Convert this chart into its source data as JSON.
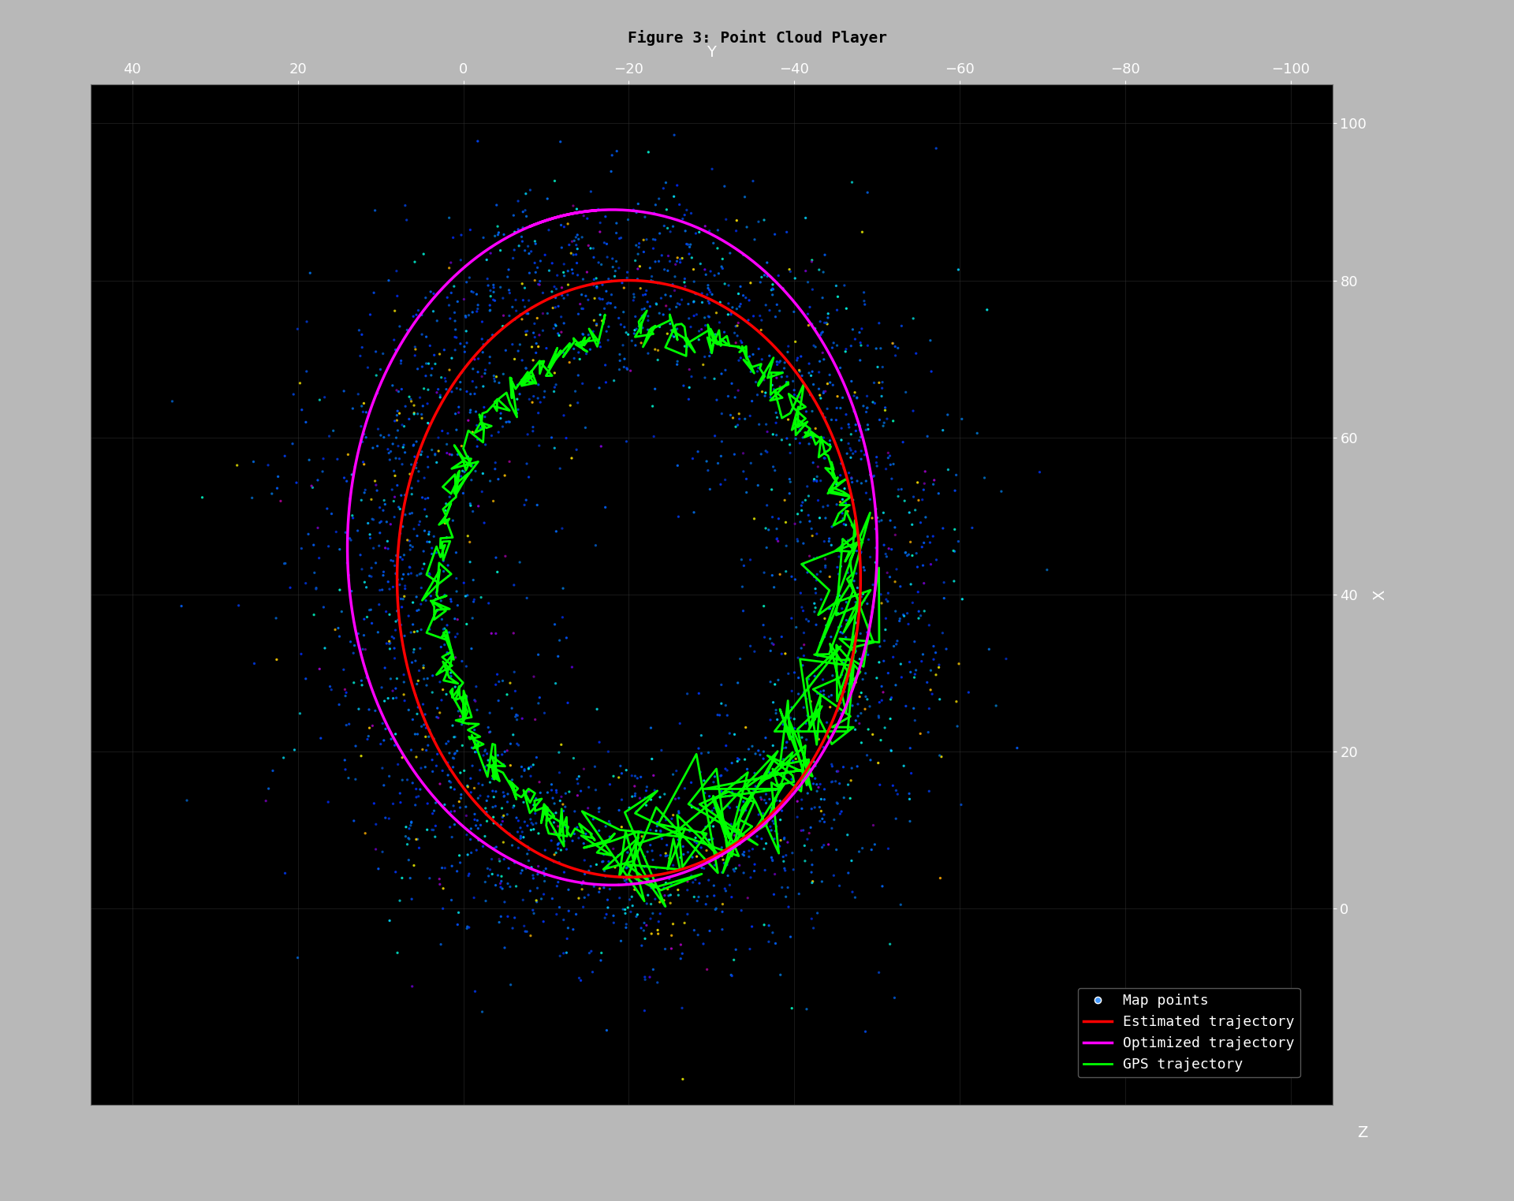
{
  "title": "Figure 3: Point Cloud Player",
  "window_bg": "#c0c0c0",
  "plot_bg": "#000000",
  "grid_color": "#404040",
  "axis_label_color": "#ffffff",
  "tick_color": "#ffffff",
  "xlabel": "Z",
  "ylabel": "X",
  "zlabel": "Y",
  "x_axis_label": "X",
  "y_axis_label": "Y",
  "z_axis_label": "Z",
  "ylim": [
    -25,
    105
  ],
  "xlim": [
    50,
    -105
  ],
  "legend_bg": "#000000",
  "legend_text_color": "#ffffff",
  "legend_entries": [
    "Map points",
    "Estimated trajectory",
    "Optimized trajectory",
    "GPS trajectory"
  ],
  "legend_colors": [
    "#4488ff",
    "#ff0000",
    "#ff00ff",
    "#00ff00"
  ],
  "font_family": "monospace"
}
